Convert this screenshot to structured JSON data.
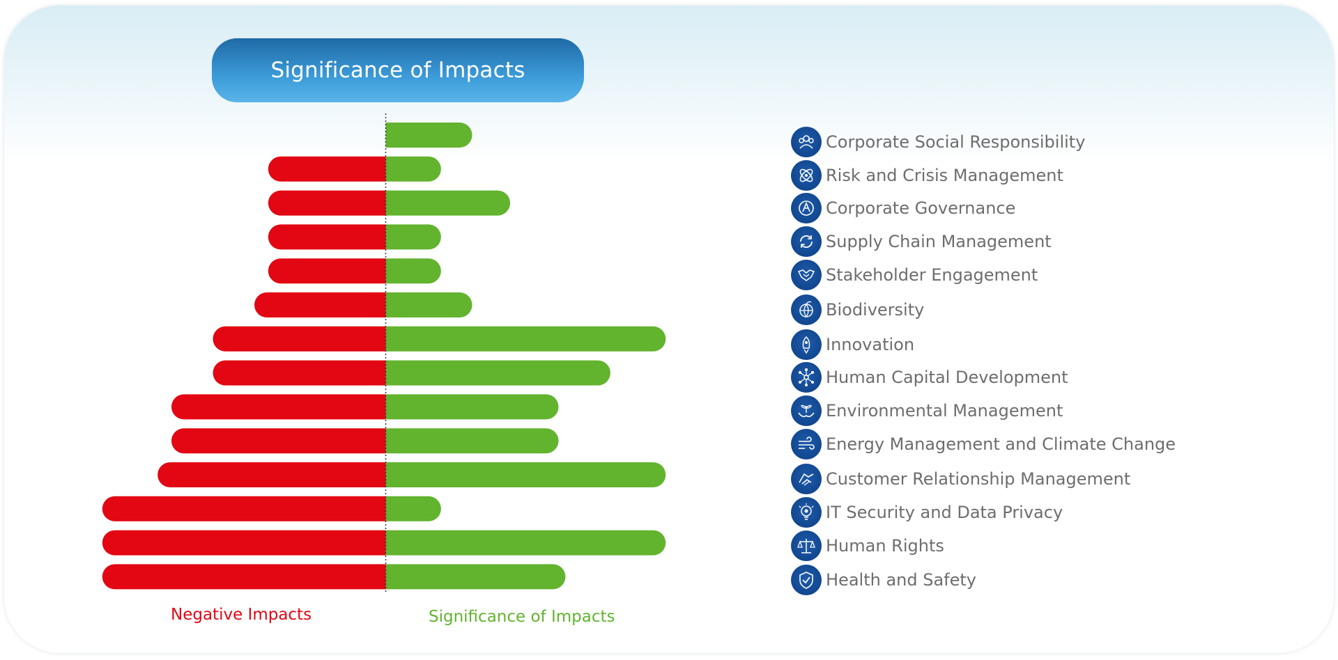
{
  "title": "Significance of Impacts",
  "colors": {
    "negative": "#e30613",
    "positive": "#62b32e",
    "legend_icon": "#0d3f86",
    "legend_text": "#6d6d6d"
  },
  "axis_labels": {
    "negative": "Negative Impacts",
    "positive": "Significance of Impacts"
  },
  "legend": [
    {
      "label": "Corporate Social Responsibility",
      "icon": "people-icon"
    },
    {
      "label": "Risk and Crisis Management",
      "icon": "atom-icon"
    },
    {
      "label": "Corporate Governance",
      "icon": "governance-icon"
    },
    {
      "label": "Supply Chain Management",
      "icon": "cycle-icon"
    },
    {
      "label": "Stakeholder Engagement",
      "icon": "handshake-icon"
    },
    {
      "label": "Biodiversity",
      "icon": "globe-leaf-icon"
    },
    {
      "label": "Innovation",
      "icon": "rocket-icon"
    },
    {
      "label": "Human Capital Development",
      "icon": "network-icon"
    },
    {
      "label": "Environmental Management",
      "icon": "plant-hands-icon"
    },
    {
      "label": "Energy Management and Climate Change",
      "icon": "wind-icon"
    },
    {
      "label": "Customer Relationship Management",
      "icon": "handshake-care-icon"
    },
    {
      "label": "IT Security and Data Privacy",
      "icon": "lightbulb-gear-icon"
    },
    {
      "label": "Human Rights",
      "icon": "scales-icon"
    },
    {
      "label": "Health and Safety",
      "icon": "shield-check-icon"
    }
  ],
  "chart_data": {
    "type": "bar",
    "orientation": "horizontal-diverging",
    "title": "Significance of Impacts",
    "xlabel": "",
    "ylabel": "",
    "categories": [
      "Corporate Social Responsibility",
      "Risk and Crisis Management",
      "Corporate Governance",
      "Supply Chain Management",
      "Stakeholder Engagement",
      "Biodiversity",
      "Innovation",
      "Human Capital Development",
      "Environmental Management",
      "Energy Management and Climate Change",
      "Customer Relationship Management",
      "IT Security and Data Privacy",
      "Human Rights",
      "Health and Safety"
    ],
    "series": [
      {
        "name": "Negative Impacts",
        "values": [
          0,
          3.4,
          3.4,
          3.4,
          3.4,
          3.8,
          5.0,
          5.0,
          6.2,
          6.2,
          6.6,
          8.2,
          8.2,
          8.2
        ]
      },
      {
        "name": "Significance of Impacts",
        "values": [
          2.5,
          1.6,
          3.6,
          1.6,
          1.6,
          2.5,
          8.1,
          6.5,
          5.0,
          5.0,
          8.1,
          1.6,
          8.1,
          5.2
        ]
      }
    ],
    "xlim": [
      -8.5,
      8.5
    ],
    "grid": false,
    "legend": "right"
  }
}
